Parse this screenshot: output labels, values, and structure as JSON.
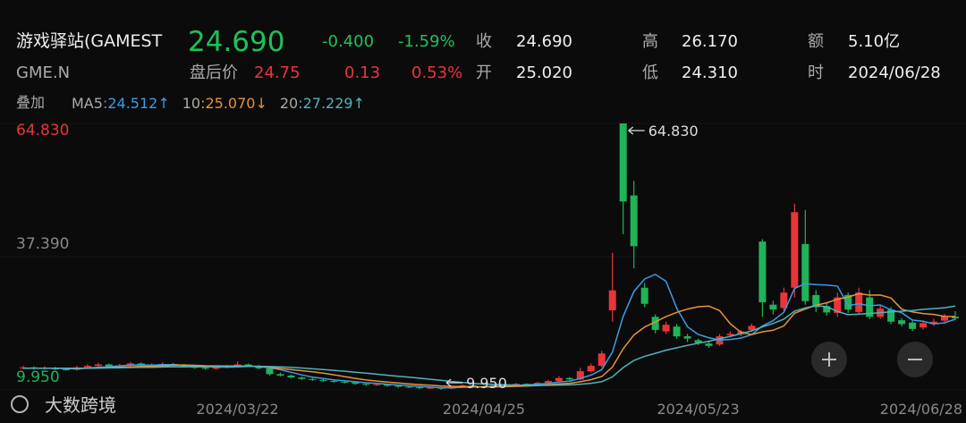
{
  "header": {
    "name": "游戏驿站(GAMEST",
    "symbol": "GME.N",
    "price": "24.690",
    "change": "-0.400",
    "change_pct": "-1.59%",
    "after_hours_label": "盘后价",
    "after_hours_price": "24.75",
    "after_hours_change": "0.13",
    "after_hours_pct": "0.53%",
    "stats": [
      [
        "收",
        "24.690"
      ],
      [
        "开",
        "25.020"
      ],
      [
        "高",
        "26.170"
      ],
      [
        "低",
        "24.310"
      ],
      [
        "额",
        "5.10亿"
      ],
      [
        "时",
        "2024/06/28"
      ]
    ],
    "overlay_label": "叠加"
  },
  "watermark": "大数跨境",
  "chart_data": {
    "type": "candlestick",
    "up_color": "#e8353a",
    "down_color": "#1fb35a",
    "ylim": [
      9.95,
      64.83
    ],
    "yticks": [
      {
        "value": 64.83,
        "label": "64.830"
      },
      {
        "value": 37.39,
        "label": "37.390"
      },
      {
        "value": 9.95,
        "label": "9.950"
      }
    ],
    "annotations": [
      {
        "value": 64.83,
        "label": "64.830"
      },
      {
        "value": 9.95,
        "label": "9.950"
      }
    ],
    "categories": [
      null,
      null,
      null,
      null,
      null,
      null,
      null,
      null,
      null,
      null,
      null,
      null,
      null,
      null,
      null,
      null,
      null,
      null,
      null,
      null,
      "2024/03/22",
      null,
      null,
      null,
      null,
      null,
      null,
      null,
      null,
      null,
      null,
      null,
      null,
      null,
      null,
      null,
      null,
      null,
      null,
      null,
      null,
      null,
      null,
      "2024/04/25",
      null,
      null,
      null,
      null,
      null,
      null,
      null,
      null,
      null,
      null,
      null,
      null,
      null,
      null,
      null,
      null,
      null,
      null,
      null,
      "2024/05/23",
      null,
      null,
      null,
      null,
      null,
      null,
      null,
      null,
      null,
      null,
      null,
      null,
      null,
      null,
      null,
      null,
      null,
      null,
      null,
      null,
      null,
      null,
      null,
      "2024/06/28"
    ],
    "open": [
      14.4,
      14.6,
      14.3,
      14.5,
      14.2,
      14.1,
      14.6,
      14.9,
      15.2,
      14.8,
      15.0,
      15.4,
      15.1,
      14.9,
      15.3,
      15.1,
      14.8,
      14.5,
      14.3,
      14.6,
      14.9,
      15.2,
      14.9,
      14.4,
      13.2,
      12.9,
      12.5,
      12.2,
      12.0,
      11.8,
      11.6,
      11.5,
      11.2,
      11.0,
      11.1,
      10.8,
      10.6,
      10.5,
      10.3,
      10.4,
      10.2,
      10.6,
      10.9,
      10.7,
      10.6,
      10.9,
      11.0,
      11.2,
      11.1,
      11.4,
      11.8,
      12.4,
      12.1,
      13.8,
      14.9,
      26.34,
      64.83,
      50.0,
      31.0,
      25.0,
      22.0,
      23.0,
      21.0,
      20.2,
      19.5,
      19.3,
      21.2,
      21.4,
      22.3,
      40.5,
      27.5,
      26.8,
      31.0,
      40.0,
      29.5,
      27.2,
      25.8,
      29.5,
      26.0,
      29.0,
      25.0,
      26.5,
      24.3,
      23.8,
      22.8,
      23.5,
      24.2,
      25.02
    ],
    "high": [
      14.9,
      14.8,
      14.8,
      14.7,
      14.5,
      14.9,
      15.2,
      15.5,
      15.4,
      15.3,
      15.7,
      15.6,
      15.4,
      15.6,
      15.5,
      15.3,
      15.0,
      14.8,
      14.9,
      15.1,
      15.8,
      15.4,
      15.1,
      14.6,
      13.5,
      13.1,
      12.7,
      12.4,
      12.2,
      12.0,
      11.8,
      11.7,
      11.4,
      11.3,
      11.2,
      11.0,
      10.8,
      10.7,
      10.6,
      10.5,
      10.8,
      11.1,
      11.0,
      10.9,
      11.1,
      11.2,
      11.4,
      11.3,
      11.6,
      12.0,
      12.8,
      12.6,
      14.5,
      15.4,
      18.0,
      38.2,
      64.83,
      53.0,
      32.0,
      25.5,
      24.0,
      23.5,
      21.5,
      20.5,
      19.8,
      21.5,
      22.0,
      22.3,
      23.6,
      41.0,
      28.3,
      31.0,
      48.3,
      47.0,
      30.5,
      28.0,
      30.0,
      30.0,
      31.0,
      30.5,
      27.5,
      27.0,
      24.8,
      24.2,
      24.2,
      24.6,
      25.6,
      26.17
    ],
    "low": [
      14.2,
      14.1,
      14.1,
      14.0,
      13.9,
      13.9,
      14.4,
      14.7,
      14.6,
      14.6,
      14.8,
      14.9,
      14.7,
      14.7,
      14.9,
      14.6,
      14.3,
      14.1,
      14.1,
      14.4,
      14.7,
      14.7,
      14.2,
      12.9,
      12.7,
      12.3,
      12.0,
      11.8,
      11.6,
      11.4,
      11.3,
      11.0,
      10.8,
      10.8,
      10.6,
      10.4,
      10.3,
      10.1,
      10.1,
      9.95,
      10.1,
      10.4,
      10.5,
      10.4,
      10.5,
      10.7,
      10.8,
      10.9,
      10.9,
      11.2,
      11.6,
      11.9,
      11.9,
      13.5,
      14.6,
      24.0,
      42.0,
      35.0,
      27.0,
      21.6,
      21.5,
      20.5,
      19.8,
      19.2,
      18.6,
      19.0,
      20.8,
      21.0,
      21.9,
      25.0,
      25.5,
      26.2,
      29.0,
      27.5,
      26.0,
      25.2,
      25.0,
      25.8,
      25.5,
      24.5,
      24.6,
      23.5,
      23.0,
      22.1,
      22.4,
      23.1,
      23.9,
      24.31
    ],
    "close": [
      14.6,
      14.3,
      14.5,
      14.2,
      14.1,
      14.6,
      14.9,
      15.2,
      14.8,
      15.0,
      15.4,
      15.1,
      14.9,
      15.3,
      15.1,
      14.8,
      14.5,
      14.3,
      14.6,
      14.9,
      15.2,
      14.9,
      14.4,
      13.2,
      12.9,
      12.5,
      12.2,
      12.0,
      11.8,
      11.6,
      11.5,
      11.2,
      11.0,
      11.1,
      10.8,
      10.6,
      10.5,
      10.3,
      10.4,
      10.2,
      10.6,
      10.9,
      10.7,
      10.6,
      10.9,
      11.0,
      11.2,
      11.1,
      11.4,
      11.8,
      12.4,
      12.1,
      13.8,
      14.9,
      17.46,
      30.45,
      48.75,
      39.55,
      27.67,
      22.3,
      23.36,
      20.97,
      20.53,
      19.64,
      19.01,
      21.0,
      21.5,
      22.0,
      23.14,
      28.0,
      26.5,
      30.0,
      46.55,
      28.22,
      27.0,
      25.9,
      29.0,
      26.5,
      30.0,
      25.0,
      26.7,
      24.0,
      23.5,
      22.5,
      23.7,
      24.0,
      25.09,
      24.69
    ],
    "series": [
      {
        "name": "MA5",
        "legend_label": ":24.512↑",
        "color": "#3b9de6",
        "values": [
          14.4,
          14.4,
          14.4,
          14.4,
          14.34,
          14.34,
          14.46,
          14.6,
          14.72,
          14.9,
          15.06,
          15.1,
          15.04,
          15.14,
          15.16,
          15.04,
          14.92,
          14.8,
          14.66,
          14.62,
          14.7,
          14.78,
          14.8,
          14.52,
          14.12,
          13.58,
          13.04,
          12.56,
          12.28,
          12.02,
          11.82,
          11.62,
          11.42,
          11.28,
          11.12,
          10.94,
          10.8,
          10.66,
          10.52,
          10.4,
          10.4,
          10.48,
          10.56,
          10.6,
          10.74,
          10.82,
          10.88,
          10.96,
          11.12,
          11.3,
          11.58,
          11.76,
          12.3,
          13.0,
          14.13,
          17.74,
          25.07,
          30.22,
          32.78,
          33.74,
          32.33,
          26.77,
          22.97,
          21.36,
          20.7,
          20.23,
          20.34,
          20.63,
          21.33,
          23.13,
          24.23,
          25.93,
          30.84,
          31.85,
          31.65,
          31.53,
          31.33,
          27.32,
          27.68,
          27.28,
          27.44,
          26.44,
          25.84,
          24.34,
          24.08,
          23.54,
          23.76,
          24.512
        ]
      },
      {
        "name": "10",
        "legend_label": ":25.070↓",
        "color": "#e8923a",
        "values": [
          14.4,
          14.4,
          14.4,
          14.4,
          14.4,
          14.37,
          14.43,
          14.5,
          14.56,
          14.62,
          14.7,
          14.78,
          14.82,
          14.93,
          15.03,
          15.05,
          15.01,
          14.92,
          14.9,
          14.89,
          14.87,
          14.85,
          14.8,
          14.59,
          14.37,
          14.14,
          13.91,
          13.68,
          13.4,
          13.07,
          12.7,
          12.33,
          11.99,
          11.78,
          11.57,
          11.38,
          11.21,
          11.04,
          10.9,
          10.76,
          10.67,
          10.64,
          10.61,
          10.56,
          10.57,
          10.61,
          10.68,
          10.76,
          10.86,
          11.02,
          11.2,
          11.32,
          11.63,
          12.06,
          12.72,
          14.66,
          18.42,
          21.26,
          22.89,
          23.94,
          25.04,
          25.92,
          26.6,
          27.07,
          27.22,
          26.28,
          23.56,
          21.8,
          21.35,
          21.92,
          22.23,
          23.14,
          25.74,
          26.59,
          27.39,
          27.88,
          28.63,
          29.08,
          29.77,
          29.47,
          29.49,
          28.89,
          26.58,
          26.01,
          25.68,
          25.49,
          25.1,
          25.07
        ]
      },
      {
        "name": "20",
        "legend_label": ":27.229↑",
        "color": "#4fb3bf",
        "values": [
          14.4,
          14.4,
          14.4,
          14.4,
          14.4,
          14.39,
          14.42,
          14.45,
          14.48,
          14.51,
          14.55,
          14.59,
          14.61,
          14.67,
          14.72,
          14.71,
          14.72,
          14.71,
          14.73,
          14.76,
          14.79,
          14.82,
          14.81,
          14.76,
          14.7,
          14.6,
          14.46,
          14.3,
          14.15,
          13.98,
          13.79,
          13.59,
          13.4,
          13.19,
          12.97,
          12.76,
          12.56,
          12.36,
          12.15,
          11.92,
          11.69,
          11.49,
          11.3,
          11.17,
          11.07,
          11.0,
          10.95,
          10.9,
          10.88,
          10.89,
          10.94,
          10.98,
          11.12,
          11.31,
          11.65,
          12.64,
          14.55,
          16.01,
          16.88,
          17.48,
          18.12,
          18.62,
          19.12,
          19.57,
          19.97,
          20.47,
          20.99,
          21.53,
          22.12,
          22.93,
          23.64,
          24.53,
          26.17,
          26.83,
          27.31,
          27.08,
          26.1,
          25.44,
          25.56,
          25.7,
          25.86,
          26.02,
          26.16,
          26.3,
          26.54,
          26.69,
          26.87,
          27.229
        ]
      }
    ]
  }
}
